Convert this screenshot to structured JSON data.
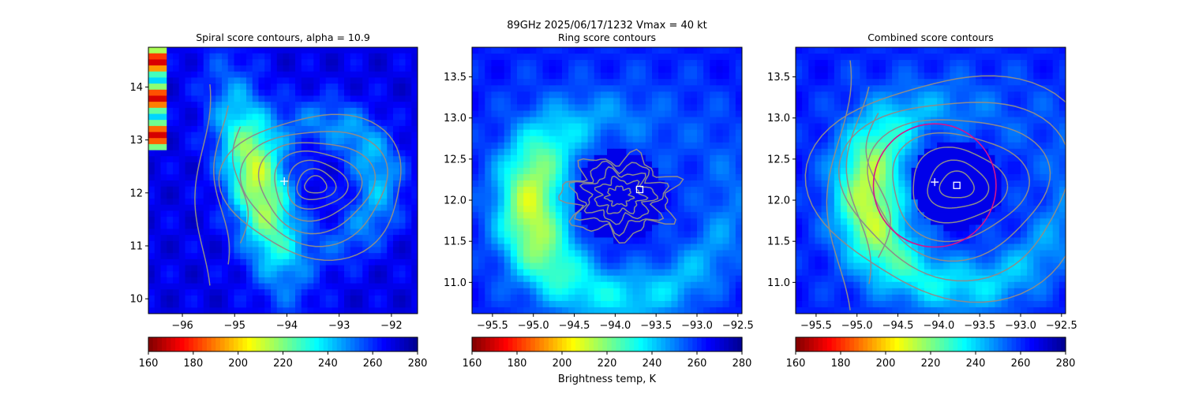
{
  "figure": {
    "suptitle_line1": "89GHz  2025/06/17/1232    Vmax = 40 kt",
    "colorbar_label": "Brightness temp, K",
    "colormap": [
      "#800000",
      "#ff0000",
      "#ff8000",
      "#ffff00",
      "#80ff80",
      "#00ffff",
      "#0080ff",
      "#0000ff",
      "#00008f"
    ]
  },
  "chart_data": [
    {
      "type": "heatmap",
      "title": "Spiral score contours, alpha = 10.9",
      "xlim": [
        -96.65,
        -91.5
      ],
      "ylim": [
        9.72,
        14.75
      ],
      "xticks": [
        -96,
        -95,
        -94,
        -93,
        -92
      ],
      "xtick_labels": [
        "−96",
        "−95",
        "−94",
        "−93",
        "−92"
      ],
      "yticks": [
        10,
        11,
        12,
        13,
        14
      ],
      "ytick_labels": [
        "10",
        "11",
        "12",
        "13",
        "14"
      ],
      "colorbar": {
        "min": 160,
        "max": 280,
        "ticks": [
          160,
          180,
          200,
          220,
          240,
          260,
          280
        ],
        "tick_labels": [
          "160",
          "180",
          "200",
          "220",
          "240",
          "260",
          "280"
        ]
      },
      "contour_center": [
        -93.45,
        12.15
      ],
      "plus_marker": [
        -94.05,
        12.22
      ]
    },
    {
      "type": "heatmap",
      "title": "Ring score contours",
      "xlim": [
        -95.75,
        -92.45
      ],
      "ylim": [
        10.62,
        13.86
      ],
      "xticks": [
        -95.5,
        -95.0,
        -94.5,
        -94.0,
        -93.5,
        -93.0,
        -92.5
      ],
      "xtick_labels": [
        "−95.5",
        "−95.0",
        "−94.5",
        "−94.0",
        "−93.5",
        "−93.0",
        "−92.5"
      ],
      "yticks": [
        11.0,
        11.5,
        12.0,
        12.5,
        13.0,
        13.5
      ],
      "ytick_labels": [
        "11.0",
        "11.5",
        "12.0",
        "12.5",
        "13.0",
        "13.5"
      ],
      "colorbar": {
        "min": 160,
        "max": 280,
        "ticks": [
          160,
          180,
          200,
          220,
          240,
          260,
          280
        ],
        "tick_labels": [
          "160",
          "180",
          "200",
          "220",
          "240",
          "260",
          "280"
        ]
      },
      "contour_center": [
        -93.95,
        12.05
      ],
      "square_marker": [
        -93.7,
        12.13
      ]
    },
    {
      "type": "heatmap",
      "title": "Combined score contours",
      "xlim": [
        -95.75,
        -92.45
      ],
      "ylim": [
        10.62,
        13.86
      ],
      "xticks": [
        -95.5,
        -95.0,
        -94.5,
        -94.0,
        -93.5,
        -93.0,
        -92.5
      ],
      "xtick_labels": [
        "−95.5",
        "−95.0",
        "−94.5",
        "−94.0",
        "−93.5",
        "−93.0",
        "−92.5"
      ],
      "yticks": [
        11.0,
        11.5,
        12.0,
        12.5,
        13.0,
        13.5
      ],
      "ytick_labels": [
        "11.0",
        "11.5",
        "12.0",
        "12.5",
        "13.0",
        "13.5"
      ],
      "colorbar": {
        "min": 160,
        "max": 280,
        "ticks": [
          160,
          180,
          200,
          220,
          240,
          260,
          280
        ],
        "tick_labels": [
          "160",
          "180",
          "200",
          "220",
          "240",
          "260",
          "280"
        ]
      },
      "contour_center": [
        -93.78,
        12.18
      ],
      "plus_marker": [
        -94.05,
        12.22
      ],
      "square_marker": [
        -93.78,
        12.18
      ],
      "ring_circle": {
        "center": [
          -94.05,
          12.18
        ],
        "radius_deg": 0.75,
        "color": "#d6148c"
      }
    }
  ]
}
